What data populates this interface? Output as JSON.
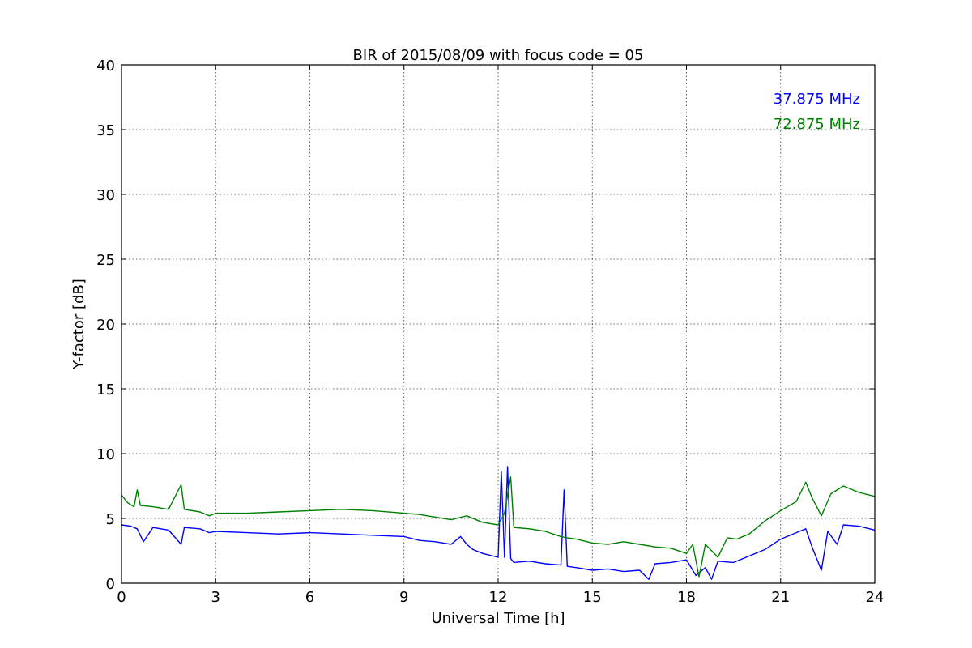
{
  "chart_data": {
    "type": "line",
    "title": "BIR of 2015/08/09 with focus code = 05",
    "xlabel": "Universal Time [h]",
    "ylabel": "Y-factor [dB]",
    "xlim": [
      0,
      24
    ],
    "ylim": [
      0,
      40
    ],
    "xticks": [
      0,
      3,
      6,
      9,
      12,
      15,
      18,
      21,
      24
    ],
    "yticks": [
      0,
      5,
      10,
      15,
      20,
      25,
      30,
      35,
      40
    ],
    "xtick_labels": [
      "0",
      "3",
      "6",
      "9",
      "12",
      "15",
      "18",
      "21",
      "24"
    ],
    "ytick_labels": [
      "0",
      "5",
      "10",
      "15",
      "20",
      "25",
      "30",
      "35",
      "40"
    ],
    "grid": true,
    "legend_placement": "top-right",
    "series": [
      {
        "name": "37.875 MHz",
        "color": "#0000ff",
        "x": [
          0.0,
          0.3,
          0.5,
          0.7,
          1.0,
          1.5,
          1.9,
          2.0,
          2.5,
          2.8,
          3.0,
          4.0,
          5.0,
          6.0,
          7.0,
          8.0,
          9.0,
          9.5,
          10.0,
          10.5,
          10.8,
          11.0,
          11.2,
          11.5,
          12.0,
          12.1,
          12.2,
          12.3,
          12.4,
          12.5,
          13.0,
          13.5,
          14.0,
          14.1,
          14.2,
          14.5,
          15.0,
          15.5,
          16.0,
          16.5,
          16.8,
          17.0,
          17.5,
          18.0,
          18.3,
          18.6,
          18.8,
          19.0,
          19.5,
          20.0,
          20.5,
          21.0,
          21.5,
          21.8,
          22.0,
          22.3,
          22.5,
          22.8,
          23.0,
          23.5,
          24.0
        ],
        "y": [
          4.5,
          4.4,
          4.2,
          3.2,
          4.3,
          4.1,
          3.0,
          4.3,
          4.2,
          3.9,
          4.0,
          3.9,
          3.8,
          3.9,
          3.8,
          3.7,
          3.6,
          3.3,
          3.2,
          3.0,
          3.6,
          3.0,
          2.6,
          2.3,
          2.0,
          8.6,
          2.0,
          9.0,
          1.9,
          1.6,
          1.7,
          1.5,
          1.4,
          7.2,
          1.3,
          1.2,
          1.0,
          1.1,
          0.9,
          1.0,
          0.3,
          1.5,
          1.6,
          1.8,
          0.6,
          1.2,
          0.3,
          1.7,
          1.6,
          2.1,
          2.6,
          3.4,
          3.9,
          4.2,
          2.8,
          1.0,
          4.0,
          3.0,
          4.5,
          4.4,
          4.1
        ]
      },
      {
        "name": "72.875 MHz",
        "color": "#008000",
        "x": [
          0.0,
          0.2,
          0.4,
          0.5,
          0.6,
          1.0,
          1.5,
          1.9,
          2.0,
          2.5,
          2.8,
          3.0,
          4.0,
          5.0,
          6.0,
          7.0,
          8.0,
          9.0,
          9.5,
          10.0,
          10.5,
          11.0,
          11.5,
          12.0,
          12.2,
          12.4,
          12.5,
          13.0,
          13.5,
          14.0,
          14.2,
          14.5,
          15.0,
          15.5,
          16.0,
          16.5,
          17.0,
          17.5,
          18.0,
          18.2,
          18.4,
          18.6,
          19.0,
          19.3,
          19.6,
          20.0,
          20.5,
          21.0,
          21.5,
          21.8,
          22.0,
          22.3,
          22.6,
          23.0,
          23.5,
          24.0
        ],
        "y": [
          6.8,
          6.2,
          5.9,
          7.2,
          6.0,
          5.9,
          5.7,
          7.6,
          5.7,
          5.5,
          5.2,
          5.4,
          5.4,
          5.5,
          5.6,
          5.7,
          5.6,
          5.4,
          5.3,
          5.1,
          4.9,
          5.2,
          4.7,
          4.5,
          5.4,
          8.2,
          4.3,
          4.2,
          4.0,
          3.6,
          3.5,
          3.4,
          3.1,
          3.0,
          3.2,
          3.0,
          2.8,
          2.7,
          2.3,
          3.0,
          0.5,
          3.0,
          2.0,
          3.5,
          3.4,
          3.8,
          4.8,
          5.6,
          6.3,
          7.8,
          6.6,
          5.2,
          6.9,
          7.5,
          7.0,
          6.7
        ]
      }
    ]
  }
}
